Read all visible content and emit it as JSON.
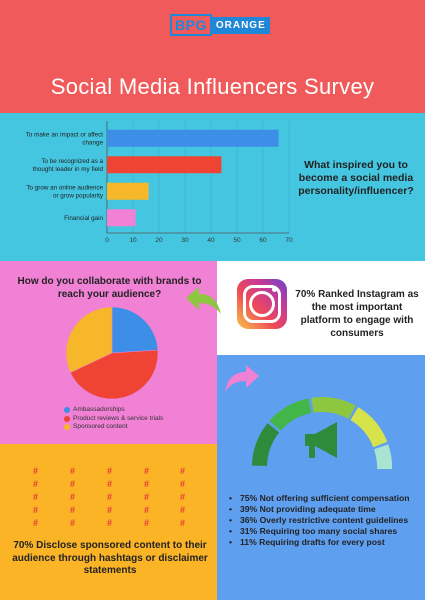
{
  "header": {
    "logo_left": "BPG",
    "logo_right": "ORANGE",
    "title": "Social Media Influencers Survey"
  },
  "inspiration": {
    "question": "What inspired you to become a social media personality/influencer?"
  },
  "collaboration": {
    "question": "How do you collaborate with brands to reach your audience?"
  },
  "instagram": {
    "icon": "instagram-icon",
    "text": "70% Ranked Instagram as the most important platform to engage with consumers"
  },
  "disclosure": {
    "hashtag": "#",
    "text": "70% Disclose sponsored content to their audience through hashtags or disclaimer statements"
  },
  "reasons": {
    "items": [
      "75% Not offering sufficient compensation",
      "39% Not providing adequate time",
      "36% Overly restrictive content guidelines",
      "31% Requiring too many social shares",
      "11% Requiring drafts for every post"
    ]
  },
  "colors": {
    "header_bg": "#f15a5a",
    "section1_bg": "#44c6e1",
    "section2_bg": "#f081d5",
    "section4_bg": "#5f9ff0",
    "section5_bg": "#fbb426",
    "arrow_green": "#8dc63f",
    "arrow_pink": "#f081d5"
  },
  "chart_data": [
    {
      "type": "bar",
      "orientation": "horizontal",
      "categories": [
        "To make an impact or affect change",
        "To be recognized as a thought leader in my field",
        "To grow an online audience or grow popularity",
        "Financial gain"
      ],
      "values": [
        66,
        44,
        16,
        11
      ],
      "colors": [
        "#3d8ee6",
        "#ef4433",
        "#f6b72a",
        "#f081d5"
      ],
      "xlim": [
        0,
        70
      ],
      "xticks": [
        0,
        10,
        20,
        30,
        40,
        50,
        60,
        70
      ],
      "title": "",
      "xlabel": "",
      "ylabel": ""
    },
    {
      "type": "pie",
      "labels": [
        "Ambassadorships",
        "Product reviews & service trials",
        "Sponsored content"
      ],
      "values": [
        24,
        44,
        32
      ],
      "colors": [
        "#3d8ee6",
        "#ef4433",
        "#f6b72a"
      ],
      "legend": "bottom"
    },
    {
      "type": "gauge",
      "segments": [
        "#2e8b3c",
        "#43b649",
        "#8dc63f",
        "#d7e34a",
        "#a9e4d3"
      ],
      "icon": "megaphone-icon"
    }
  ]
}
